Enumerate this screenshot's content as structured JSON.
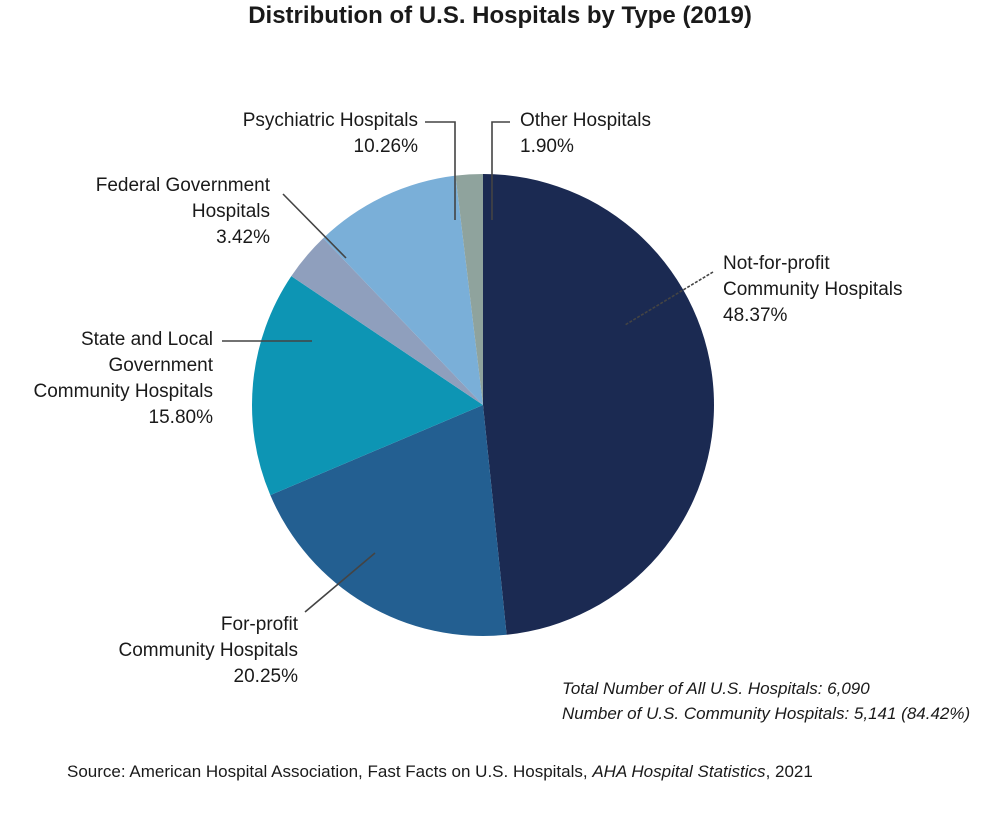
{
  "chart_data": {
    "type": "pie",
    "title": "Distribution of U.S. Hospitals by Type (2019)",
    "start": "top",
    "direction": "clockwise",
    "slices": [
      {
        "name": "Not-for-profit\nCommunity Hospitals",
        "value": 48.37,
        "label": "48.37%",
        "color": "#1b2a52"
      },
      {
        "name": "For-profit\nCommunity Hospitals",
        "value": 20.25,
        "label": "20.25%",
        "color": "#235f91"
      },
      {
        "name": "State and Local\nGovernment\nCommunity Hospitals",
        "value": 15.8,
        "label": "15.80%",
        "color": "#0d95b4"
      },
      {
        "name": "Federal Government\nHospitals",
        "value": 3.42,
        "label": "3.42%",
        "color": "#8f9fbd"
      },
      {
        "name": "Psychiatric Hospitals",
        "value": 10.26,
        "label": "10.26%",
        "color": "#7aafd8"
      },
      {
        "name": "Other Hospitals",
        "value": 1.9,
        "label": "1.90%",
        "color": "#8fa39d"
      }
    ],
    "notes": [
      "Total Number of All U.S. Hospitals: 6,090",
      "Number of U.S. Community Hospitals: 5,141 (84.42%)"
    ]
  },
  "source": {
    "prefix": "Source: American Hospital Association, Fast Facts on U.S. Hospitals, ",
    "italic": "AHA Hospital Statistics",
    "suffix": ", 2021"
  }
}
